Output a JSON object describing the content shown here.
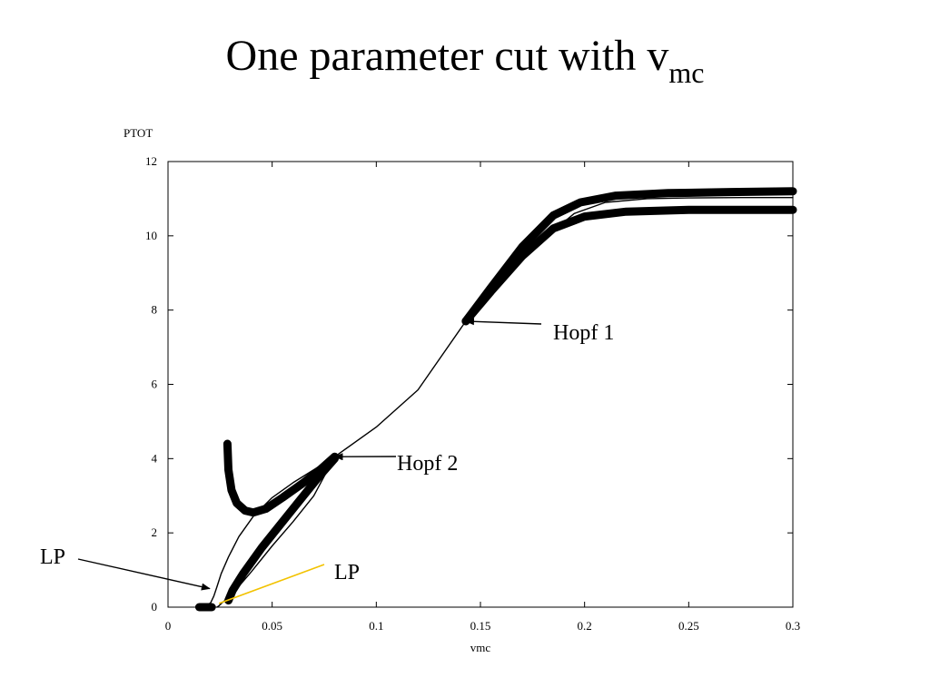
{
  "slide": {
    "title_main": "One parameter cut with v",
    "title_sub": "mc"
  },
  "chart_data": {
    "type": "line",
    "title": "One parameter cut with vmc",
    "xlabel": "vmc",
    "ylabel": "PTOT",
    "xlim": [
      0,
      0.3
    ],
    "ylim": [
      0,
      12
    ],
    "x_ticks": [
      0,
      0.05,
      0.1,
      0.15,
      0.2,
      0.25,
      0.3
    ],
    "x_tick_labels": [
      "0",
      "0.05",
      "0.1",
      "0.15",
      "0.2",
      "0.25",
      "0.3"
    ],
    "y_ticks": [
      0,
      2,
      4,
      6,
      8,
      10,
      12
    ],
    "y_tick_labels": [
      "0",
      "2",
      "4",
      "6",
      "8",
      "10",
      "12"
    ],
    "grid": false,
    "series": [
      {
        "style": "thin",
        "points": [
          [
            0.0155,
            0.0
          ],
          [
            0.018,
            0.02
          ],
          [
            0.0205,
            0.12
          ],
          [
            0.022,
            0.3
          ],
          [
            0.0235,
            0.55
          ],
          [
            0.0255,
            0.9
          ],
          [
            0.029,
            1.35
          ],
          [
            0.034,
            1.9
          ],
          [
            0.041,
            2.45
          ],
          [
            0.05,
            2.95
          ],
          [
            0.06,
            3.35
          ],
          [
            0.07,
            3.7
          ],
          [
            0.08,
            4.05
          ],
          [
            0.1,
            4.85
          ],
          [
            0.12,
            5.85
          ],
          [
            0.143,
            7.7
          ],
          [
            0.16,
            8.9
          ],
          [
            0.18,
            9.9
          ],
          [
            0.195,
            10.6
          ],
          [
            0.21,
            10.9
          ],
          [
            0.23,
            11.0
          ],
          [
            0.25,
            11.02
          ],
          [
            0.275,
            11.03
          ],
          [
            0.3,
            11.03
          ]
        ]
      },
      {
        "style": "thin",
        "points": [
          [
            0.0235,
            0.0
          ],
          [
            0.0245,
            0.04
          ],
          [
            0.026,
            0.12
          ],
          [
            0.03,
            0.3
          ],
          [
            0.04,
            0.95
          ],
          [
            0.05,
            1.65
          ],
          [
            0.06,
            2.3
          ],
          [
            0.07,
            3.0
          ],
          [
            0.08,
            4.05
          ]
        ]
      },
      {
        "style": "thick",
        "points": [
          [
            0.0285,
            4.4
          ],
          [
            0.029,
            3.7
          ],
          [
            0.0305,
            3.15
          ],
          [
            0.033,
            2.8
          ],
          [
            0.037,
            2.6
          ],
          [
            0.041,
            2.55
          ],
          [
            0.047,
            2.65
          ],
          [
            0.055,
            2.95
          ],
          [
            0.065,
            3.35
          ],
          [
            0.073,
            3.7
          ],
          [
            0.08,
            4.05
          ]
        ]
      },
      {
        "style": "thick",
        "points": [
          [
            0.029,
            0.18
          ],
          [
            0.031,
            0.45
          ],
          [
            0.036,
            0.9
          ],
          [
            0.045,
            1.6
          ],
          [
            0.055,
            2.3
          ],
          [
            0.065,
            3.0
          ],
          [
            0.073,
            3.55
          ],
          [
            0.08,
            4.0
          ]
        ]
      },
      {
        "style": "thick",
        "points": [
          [
            0.143,
            7.7
          ],
          [
            0.155,
            8.6
          ],
          [
            0.17,
            9.7
          ],
          [
            0.185,
            10.55
          ],
          [
            0.198,
            10.9
          ],
          [
            0.215,
            11.08
          ],
          [
            0.24,
            11.15
          ],
          [
            0.27,
            11.18
          ],
          [
            0.3,
            11.2
          ]
        ]
      },
      {
        "style": "thick",
        "points": [
          [
            0.143,
            7.7
          ],
          [
            0.155,
            8.5
          ],
          [
            0.17,
            9.45
          ],
          [
            0.185,
            10.2
          ],
          [
            0.2,
            10.52
          ],
          [
            0.22,
            10.65
          ],
          [
            0.25,
            10.7
          ],
          [
            0.3,
            10.7
          ]
        ]
      },
      {
        "style": "thick",
        "points": [
          [
            0.015,
            0.0
          ],
          [
            0.021,
            0.0
          ]
        ]
      }
    ],
    "annotations": [
      {
        "text": "Hopf 1",
        "point": [
          0.143,
          7.7
        ]
      },
      {
        "text": "Hopf 2",
        "point": [
          0.08,
          4.05
        ]
      },
      {
        "text": "LP",
        "point": [
          0.02,
          0.5
        ]
      },
      {
        "text": "LP",
        "point": [
          0.0245,
          0.1
        ],
        "color": "#f2c200"
      }
    ]
  }
}
